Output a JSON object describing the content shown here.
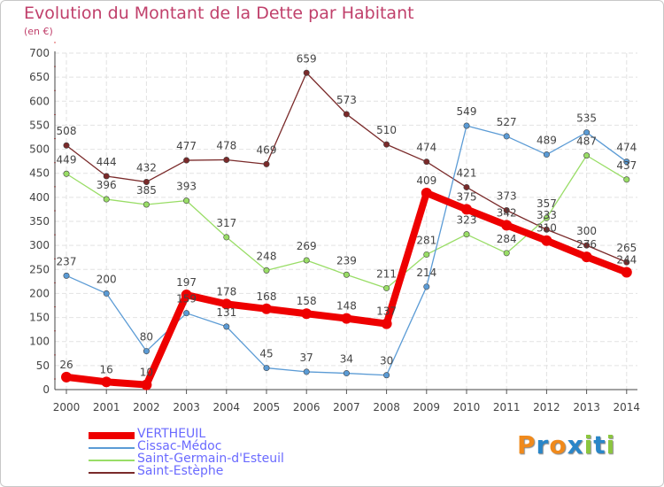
{
  "title": "Evolution du Montant de la Dette par Habitant",
  "subtitle": "(en €)",
  "logo": {
    "text": "Proxiti",
    "letters": [
      "P",
      "r",
      "o",
      "x",
      "i",
      "t",
      "i"
    ],
    "colors": [
      "#f08a1c",
      "#2a86c8",
      "#f08a1c",
      "#2a86c8",
      "#8cc63f",
      "#2a86c8",
      "#8cc63f"
    ]
  },
  "chart_data": {
    "type": "line",
    "title": "Evolution du Montant de la Dette par Habitant",
    "ylabel": "(en €)",
    "xlabel": "",
    "ylim": [
      0,
      700
    ],
    "yticks": [
      0,
      50,
      100,
      150,
      200,
      250,
      300,
      350,
      400,
      450,
      500,
      550,
      600,
      650,
      700
    ],
    "categories": [
      "2000",
      "2001",
      "2002",
      "2003",
      "2004",
      "2005",
      "2006",
      "2007",
      "2008",
      "2009",
      "2010",
      "2011",
      "2012",
      "2013",
      "2014"
    ],
    "grid": true,
    "legend_position": "bottom-left",
    "series": [
      {
        "name": "VERTHEUIL",
        "color": "#ee0000",
        "values": [
          26,
          16,
          10,
          197,
          178,
          168,
          158,
          148,
          137,
          409,
          375,
          342,
          310,
          276,
          244
        ]
      },
      {
        "name": "Cissac-Médoc",
        "color": "#5b9bd5",
        "values": [
          237,
          200,
          80,
          159,
          131,
          45,
          37,
          34,
          30,
          214,
          549,
          527,
          489,
          535,
          474
        ]
      },
      {
        "name": "Saint-Germain-d'Esteuil",
        "color": "#99dd66",
        "values": [
          449,
          396,
          385,
          393,
          317,
          248,
          269,
          239,
          211,
          281,
          323,
          284,
          357,
          487,
          437
        ]
      },
      {
        "name": "Saint-Estèphe",
        "color": "#7a2a2a",
        "values": [
          508,
          444,
          432,
          477,
          478,
          469,
          659,
          573,
          510,
          474,
          421,
          373,
          333,
          300,
          265
        ]
      }
    ]
  }
}
